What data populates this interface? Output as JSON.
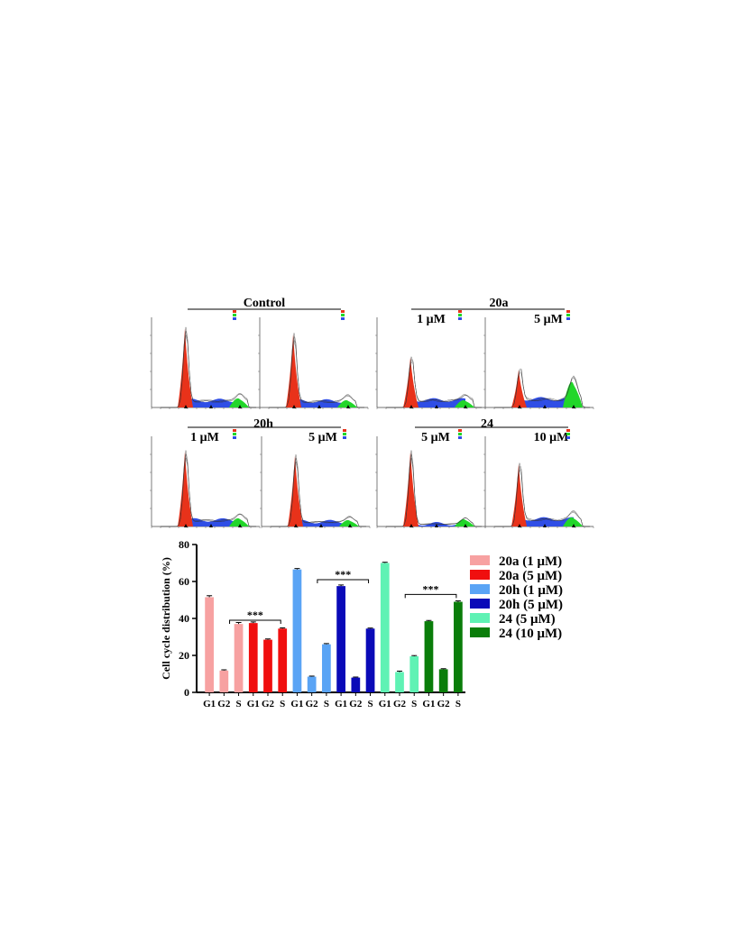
{
  "panel_headers": {
    "control": "Control",
    "c20a": "20a",
    "c20h": "20h",
    "c24": "24"
  },
  "panel_subtitles": [
    "1 μM",
    "5 μM",
    "1 μM",
    "5 μM",
    "5 μM",
    "10 μM"
  ],
  "histogram_panels": [
    {
      "g1_peak": 0.95,
      "s_level": 0.13,
      "g2_level": 0.1
    },
    {
      "g1_peak": 0.88,
      "s_level": 0.12,
      "g2_level": 0.08
    },
    {
      "g1_peak": 0.6,
      "s_level": 0.14,
      "g2_level": 0.08
    },
    {
      "g1_peak": 0.45,
      "s_level": 0.16,
      "g2_level": 0.28
    },
    {
      "g1_peak": 0.9,
      "s_level": 0.12,
      "g2_level": 0.09
    },
    {
      "g1_peak": 0.85,
      "s_level": 0.09,
      "g2_level": 0.07
    },
    {
      "g1_peak": 0.9,
      "s_level": 0.05,
      "g2_level": 0.08
    },
    {
      "g1_peak": 0.75,
      "s_level": 0.14,
      "g2_level": 0.1
    }
  ],
  "colors": {
    "g1_fill": "#e8321a",
    "s_fill": "#2f4ee6",
    "g2_fill": "#22d62a"
  },
  "chart_data": {
    "type": "bar",
    "ylabel": "Cell cycle distribution (%)",
    "ylim": [
      0,
      80
    ],
    "yticks": [
      0,
      20,
      40,
      60,
      80
    ],
    "phase_labels": [
      "G1",
      "G2",
      "S"
    ],
    "series": [
      {
        "name": "20a (1 μM)",
        "color": "#f7a1a1",
        "values": [
          51.5,
          11.8,
          37.0
        ],
        "errors": [
          0.8,
          0.4,
          0.8
        ]
      },
      {
        "name": "20a (5 μM)",
        "color": "#f00f0f",
        "values": [
          37.5,
          28.5,
          34.5
        ],
        "errors": [
          0.6,
          0.4,
          0.4
        ]
      },
      {
        "name": "20h (1 μM)",
        "color": "#5aa4f5",
        "values": [
          66.5,
          8.5,
          26.0
        ],
        "errors": [
          0.5,
          0.3,
          0.4
        ]
      },
      {
        "name": "20h (5 μM)",
        "color": "#0a0ab8",
        "values": [
          57.5,
          8.0,
          34.5
        ],
        "errors": [
          0.6,
          0.3,
          0.3
        ]
      },
      {
        "name": "24 (5 μM)",
        "color": "#5ff2b4",
        "values": [
          70.0,
          11.0,
          19.5
        ],
        "errors": [
          0.4,
          0.5,
          0.4
        ]
      },
      {
        "name": "24 (10 μM)",
        "color": "#0a7d0a",
        "values": [
          38.5,
          12.5,
          49.0
        ],
        "errors": [
          0.4,
          0.3,
          0.5
        ]
      }
    ],
    "annotations": [
      {
        "text": "***",
        "from_series": 0,
        "from_phase": 2,
        "to_series": 1,
        "to_phase": 2,
        "level": 39
      },
      {
        "text": "***",
        "from_series": 2,
        "from_phase": 2,
        "to_series": 3,
        "to_phase": 2,
        "level": 61
      },
      {
        "text": "***",
        "from_series": 4,
        "from_phase": 2,
        "to_series": 5,
        "to_phase": 2,
        "level": 53
      }
    ]
  }
}
